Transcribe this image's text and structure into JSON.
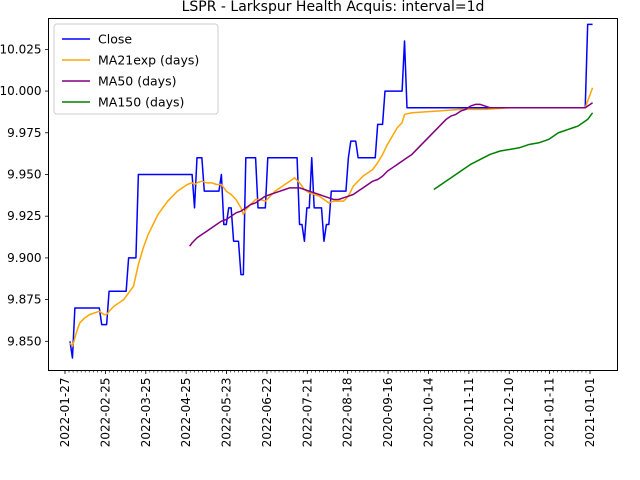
{
  "chart_data": {
    "type": "line",
    "title": "LSPR - Larkspur Health Acquis: interval=1d",
    "xlabel": "",
    "ylabel": "",
    "ylim": [
      9.8325,
      10.0435
    ],
    "y_tick_values": [
      9.85,
      9.875,
      9.9,
      9.925,
      9.95,
      9.975,
      10.0,
      10.025
    ],
    "y_tick_labels": [
      "9.850",
      "9.875",
      "9.900",
      "9.925",
      "9.950",
      "9.975",
      "10.000",
      "10.025"
    ],
    "x_tick_labels": [
      "2022-01-27",
      "2022-02-25",
      "2022-03-25",
      "2022-04-25",
      "2022-05-23",
      "2022-06-22",
      "2022-07-21",
      "2022-08-18",
      "2020-09-16",
      "2020-10-14",
      "2020-11-11",
      "2020-12-10",
      "2021-01-11",
      "2021-01-01"
    ],
    "x_range": [
      0,
      215
    ],
    "grid": false,
    "legend_position": "top-left",
    "series": [
      {
        "name": "Close",
        "color": "#0000ff",
        "points": [
          [
            0,
            9.85
          ],
          [
            1,
            9.84
          ],
          [
            2,
            9.87
          ],
          [
            12,
            9.87
          ],
          [
            13,
            9.86
          ],
          [
            15,
            9.86
          ],
          [
            16,
            9.88
          ],
          [
            23,
            9.88
          ],
          [
            24,
            9.9
          ],
          [
            27,
            9.9
          ],
          [
            28,
            9.95
          ],
          [
            50,
            9.95
          ],
          [
            51,
            9.93
          ],
          [
            52,
            9.96
          ],
          [
            54,
            9.96
          ],
          [
            55,
            9.94
          ],
          [
            61,
            9.94
          ],
          [
            62,
            9.95
          ],
          [
            63,
            9.92
          ],
          [
            64,
            9.92
          ],
          [
            65,
            9.93
          ],
          [
            66,
            9.93
          ],
          [
            67,
            9.91
          ],
          [
            69,
            9.91
          ],
          [
            70,
            9.89
          ],
          [
            71,
            9.89
          ],
          [
            72,
            9.96
          ],
          [
            76,
            9.96
          ],
          [
            77,
            9.93
          ],
          [
            80,
            9.93
          ],
          [
            81,
            9.96
          ],
          [
            93,
            9.96
          ],
          [
            94,
            9.92
          ],
          [
            95,
            9.92
          ],
          [
            96,
            9.91
          ],
          [
            97,
            9.93
          ],
          [
            98,
            9.93
          ],
          [
            99,
            9.96
          ],
          [
            100,
            9.93
          ],
          [
            103,
            9.93
          ],
          [
            104,
            9.91
          ],
          [
            105,
            9.92
          ],
          [
            106,
            9.92
          ],
          [
            107,
            9.94
          ],
          [
            113,
            9.94
          ],
          [
            114,
            9.96
          ],
          [
            115,
            9.97
          ],
          [
            117,
            9.97
          ],
          [
            118,
            9.96
          ],
          [
            125,
            9.96
          ],
          [
            126,
            9.98
          ],
          [
            128,
            9.98
          ],
          [
            129,
            10.0
          ],
          [
            136,
            10.0
          ],
          [
            137,
            10.03
          ],
          [
            138,
            9.99
          ],
          [
            211,
            9.99
          ],
          [
            212,
            10.04
          ],
          [
            214,
            10.04
          ]
        ]
      },
      {
        "name": "MA21exp (days)",
        "color": "#ffa500",
        "points": [
          [
            0,
            9.849
          ],
          [
            1,
            9.847
          ],
          [
            2,
            9.852
          ],
          [
            3,
            9.857
          ],
          [
            4,
            9.861
          ],
          [
            6,
            9.864
          ],
          [
            8,
            9.866
          ],
          [
            10,
            9.867
          ],
          [
            12,
            9.868
          ],
          [
            13,
            9.867
          ],
          [
            14,
            9.866
          ],
          [
            15,
            9.866
          ],
          [
            16,
            9.868
          ],
          [
            18,
            9.871
          ],
          [
            20,
            9.873
          ],
          [
            22,
            9.875
          ],
          [
            24,
            9.879
          ],
          [
            26,
            9.883
          ],
          [
            28,
            9.896
          ],
          [
            30,
            9.906
          ],
          [
            32,
            9.914
          ],
          [
            34,
            9.92
          ],
          [
            36,
            9.926
          ],
          [
            38,
            9.93
          ],
          [
            40,
            9.934
          ],
          [
            42,
            9.937
          ],
          [
            44,
            9.94
          ],
          [
            46,
            9.942
          ],
          [
            48,
            9.944
          ],
          [
            50,
            9.945
          ],
          [
            51,
            9.944
          ],
          [
            52,
            9.945
          ],
          [
            54,
            9.946
          ],
          [
            56,
            9.945
          ],
          [
            58,
            9.945
          ],
          [
            60,
            9.944
          ],
          [
            62,
            9.944
          ],
          [
            64,
            9.94
          ],
          [
            66,
            9.938
          ],
          [
            68,
            9.935
          ],
          [
            70,
            9.93
          ],
          [
            71,
            9.926
          ],
          [
            72,
            9.929
          ],
          [
            74,
            9.932
          ],
          [
            76,
            9.935
          ],
          [
            78,
            9.935
          ],
          [
            80,
            9.934
          ],
          [
            82,
            9.937
          ],
          [
            84,
            9.94
          ],
          [
            86,
            9.942
          ],
          [
            88,
            9.944
          ],
          [
            90,
            9.946
          ],
          [
            92,
            9.948
          ],
          [
            94,
            9.945
          ],
          [
            96,
            9.941
          ],
          [
            98,
            9.939
          ],
          [
            100,
            9.938
          ],
          [
            102,
            9.937
          ],
          [
            104,
            9.935
          ],
          [
            106,
            9.933
          ],
          [
            108,
            9.934
          ],
          [
            110,
            9.934
          ],
          [
            112,
            9.934
          ],
          [
            114,
            9.937
          ],
          [
            116,
            9.943
          ],
          [
            118,
            9.946
          ],
          [
            120,
            9.949
          ],
          [
            122,
            9.951
          ],
          [
            124,
            9.953
          ],
          [
            126,
            9.957
          ],
          [
            128,
            9.962
          ],
          [
            130,
            9.968
          ],
          [
            132,
            9.973
          ],
          [
            134,
            9.978
          ],
          [
            136,
            9.981
          ],
          [
            137,
            9.986
          ],
          [
            140,
            9.987
          ],
          [
            150,
            9.988
          ],
          [
            160,
            9.989
          ],
          [
            170,
            9.989
          ],
          [
            180,
            9.99
          ],
          [
            190,
            9.99
          ],
          [
            200,
            9.99
          ],
          [
            211,
            9.99
          ],
          [
            212,
            9.994
          ],
          [
            214,
            10.002
          ]
        ]
      },
      {
        "name": "MA50 (days)",
        "color": "#800080",
        "points": [
          [
            49,
            9.907
          ],
          [
            50,
            9.909
          ],
          [
            52,
            9.912
          ],
          [
            54,
            9.914
          ],
          [
            56,
            9.916
          ],
          [
            58,
            9.918
          ],
          [
            60,
            9.92
          ],
          [
            62,
            9.922
          ],
          [
            64,
            9.923
          ],
          [
            66,
            9.925
          ],
          [
            68,
            9.927
          ],
          [
            70,
            9.928
          ],
          [
            72,
            9.93
          ],
          [
            74,
            9.932
          ],
          [
            76,
            9.933
          ],
          [
            78,
            9.935
          ],
          [
            80,
            9.937
          ],
          [
            82,
            9.938
          ],
          [
            84,
            9.939
          ],
          [
            86,
            9.94
          ],
          [
            88,
            9.941
          ],
          [
            90,
            9.942
          ],
          [
            92,
            9.942
          ],
          [
            94,
            9.942
          ],
          [
            96,
            9.941
          ],
          [
            98,
            9.94
          ],
          [
            100,
            9.939
          ],
          [
            102,
            9.938
          ],
          [
            104,
            9.937
          ],
          [
            106,
            9.936
          ],
          [
            108,
            9.935
          ],
          [
            110,
            9.935
          ],
          [
            112,
            9.936
          ],
          [
            114,
            9.937
          ],
          [
            116,
            9.938
          ],
          [
            118,
            9.94
          ],
          [
            120,
            9.942
          ],
          [
            122,
            9.944
          ],
          [
            124,
            9.946
          ],
          [
            126,
            9.947
          ],
          [
            128,
            9.949
          ],
          [
            130,
            9.952
          ],
          [
            132,
            9.954
          ],
          [
            134,
            9.956
          ],
          [
            136,
            9.958
          ],
          [
            138,
            9.96
          ],
          [
            140,
            9.962
          ],
          [
            142,
            9.965
          ],
          [
            144,
            9.968
          ],
          [
            146,
            9.971
          ],
          [
            148,
            9.974
          ],
          [
            150,
            9.977
          ],
          [
            152,
            9.98
          ],
          [
            154,
            9.983
          ],
          [
            156,
            9.985
          ],
          [
            158,
            9.986
          ],
          [
            160,
            9.988
          ],
          [
            162,
            9.989
          ],
          [
            164,
            9.991
          ],
          [
            166,
            9.992
          ],
          [
            168,
            9.992
          ],
          [
            170,
            9.991
          ],
          [
            172,
            9.99
          ],
          [
            174,
            9.99
          ],
          [
            180,
            9.99
          ],
          [
            190,
            9.99
          ],
          [
            200,
            9.99
          ],
          [
            211,
            9.99
          ],
          [
            212,
            9.991
          ],
          [
            214,
            9.993
          ]
        ]
      },
      {
        "name": "MA150 (days)",
        "color": "#008000",
        "points": [
          [
            149,
            9.941
          ],
          [
            152,
            9.944
          ],
          [
            156,
            9.948
          ],
          [
            160,
            9.952
          ],
          [
            164,
            9.956
          ],
          [
            168,
            9.959
          ],
          [
            172,
            9.962
          ],
          [
            176,
            9.964
          ],
          [
            180,
            9.965
          ],
          [
            184,
            9.966
          ],
          [
            188,
            9.968
          ],
          [
            192,
            9.969
          ],
          [
            196,
            9.971
          ],
          [
            198,
            9.973
          ],
          [
            200,
            9.975
          ],
          [
            202,
            9.976
          ],
          [
            204,
            9.977
          ],
          [
            206,
            9.978
          ],
          [
            208,
            9.979
          ],
          [
            210,
            9.981
          ],
          [
            212,
            9.983
          ],
          [
            214,
            9.987
          ]
        ]
      }
    ]
  }
}
